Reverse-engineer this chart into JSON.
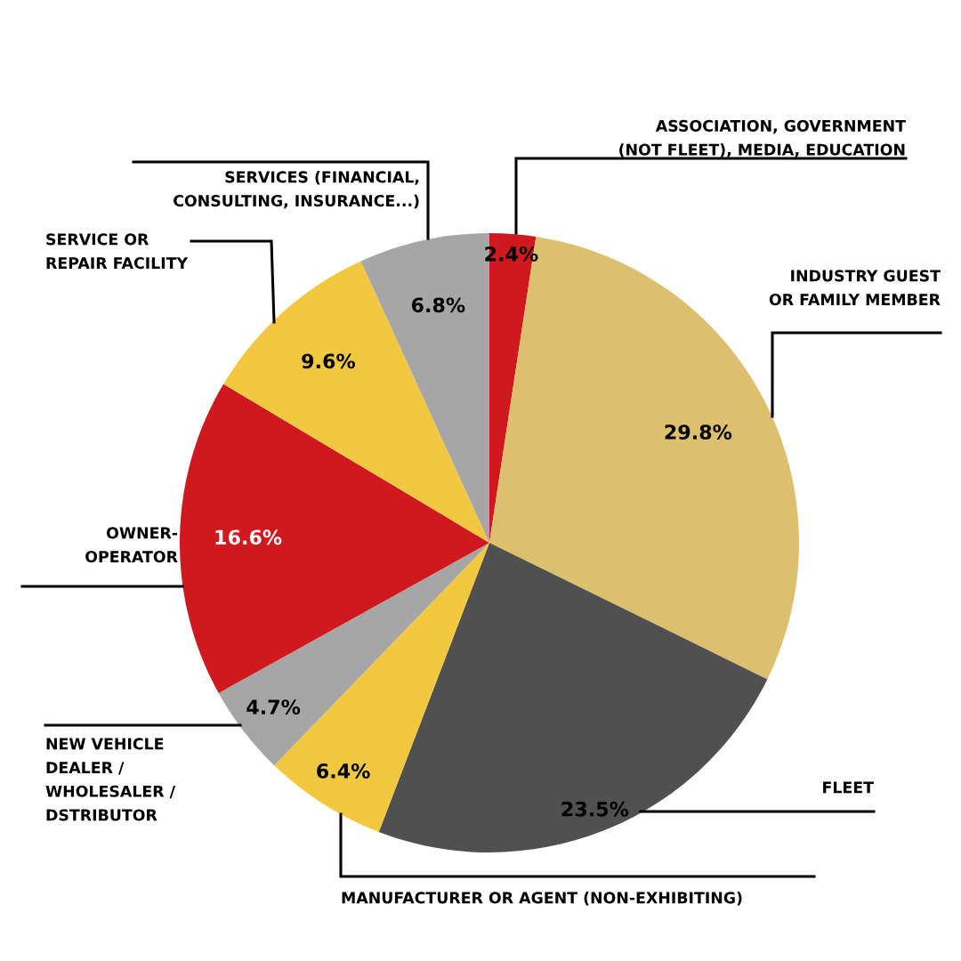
{
  "chart_data": {
    "type": "pie",
    "categories": [
      "ASSOCIATION, GOVERNMENT\n(NOT FLEET), MEDIA, EDUCATION",
      "INDUSTRY GUEST\nOR FAMILY MEMBER",
      "FLEET",
      "MANUFACTURER OR AGENT (NON-EXHIBITING)",
      "NEW VEHICLE\nDEALER /\nWHOLESALER /\nDSTRIBUTOR",
      "OWNER-\nOPERATOR",
      "SERVICE OR\nREPAIR FACILITY",
      "SERVICES (FINANCIAL,\nCONSULTING, INSURANCE...)"
    ],
    "values": [
      2.4,
      29.8,
      23.5,
      6.4,
      4.7,
      16.6,
      9.6,
      6.8
    ],
    "colors": [
      "#d0191f",
      "#dcc06e",
      "#505050",
      "#f2c840",
      "#a6a6a6",
      "#d0191f",
      "#f2c840",
      "#a6a6a6"
    ],
    "value_labels": [
      "2.4%",
      "29.8%",
      "23.5%",
      "6.4%",
      "4.7%",
      "16.6%",
      "9.6%",
      "6.8%"
    ]
  }
}
